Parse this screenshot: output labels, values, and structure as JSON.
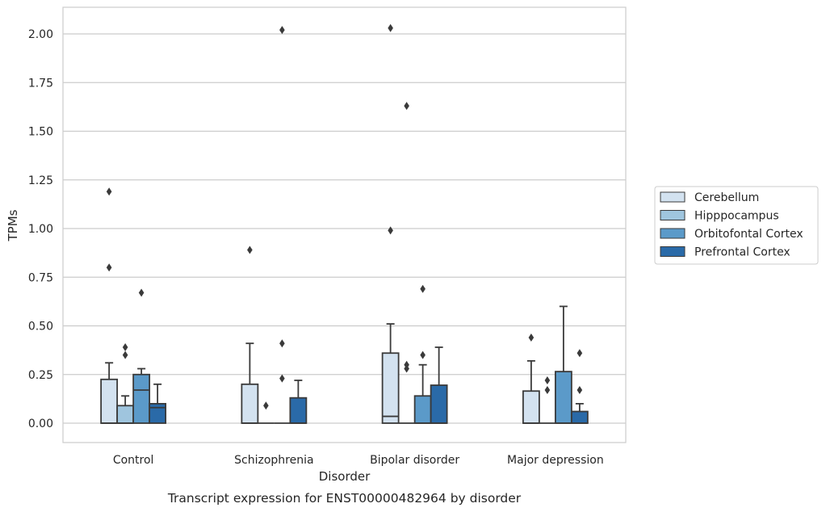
{
  "chart_data": {
    "type": "box",
    "xlabel": "Disorder",
    "ylabel": "TPMs",
    "caption": "Transcript expression for ENST00000482964 by disorder",
    "ylim": [
      -0.1,
      2.13
    ],
    "yticks": [
      0.0,
      0.25,
      0.5,
      0.75,
      1.0,
      1.25,
      1.5,
      1.75,
      2.0
    ],
    "ytick_labels": [
      "0.00",
      "0.25",
      "0.50",
      "0.75",
      "1.00",
      "1.25",
      "1.50",
      "1.75",
      "2.00"
    ],
    "grid": "horizontal",
    "legend_position": "right",
    "categories": [
      "Control",
      "Schizophrenia",
      "Bipolar disorder",
      "Major depression"
    ],
    "series": [
      {
        "name": "Cerebellum",
        "color": "#d3e2f0",
        "boxes": [
          {
            "whislo": 0.0,
            "q1": 0.0,
            "med": 0.0,
            "q3": 0.225,
            "whishi": 0.31,
            "fliers": [
              1.19,
              0.8
            ]
          },
          {
            "whislo": 0.0,
            "q1": 0.0,
            "med": 0.0,
            "q3": 0.2,
            "whishi": 0.41,
            "fliers": [
              0.89
            ]
          },
          {
            "whislo": 0.0,
            "q1": 0.0,
            "med": 0.035,
            "q3": 0.36,
            "whishi": 0.51,
            "fliers": [
              2.03,
              0.99
            ]
          },
          {
            "whislo": 0.0,
            "q1": 0.0,
            "med": 0.0,
            "q3": 0.165,
            "whishi": 0.32,
            "fliers": [
              0.44
            ]
          }
        ]
      },
      {
        "name": "Hipppocampus",
        "color": "#9fc5de",
        "boxes": [
          {
            "whislo": 0.0,
            "q1": 0.0,
            "med": 0.0,
            "q3": 0.09,
            "whishi": 0.14,
            "fliers": [
              0.39,
              0.35
            ]
          },
          {
            "whislo": 0.0,
            "q1": 0.0,
            "med": 0.0,
            "q3": 0.0,
            "whishi": 0.0,
            "fliers": [
              0.09
            ]
          },
          {
            "whislo": 0.0,
            "q1": 0.0,
            "med": 0.0,
            "q3": 0.0,
            "whishi": 0.0,
            "fliers": [
              1.63,
              0.3,
              0.28
            ]
          },
          {
            "whislo": 0.0,
            "q1": 0.0,
            "med": 0.0,
            "q3": 0.0,
            "whishi": 0.0,
            "fliers": [
              0.22,
              0.17
            ]
          }
        ]
      },
      {
        "name": "Orbitofontal Cortex",
        "color": "#5b9ac9",
        "boxes": [
          {
            "whislo": 0.0,
            "q1": 0.0,
            "med": 0.17,
            "q3": 0.25,
            "whishi": 0.28,
            "fliers": [
              0.67
            ]
          },
          {
            "whislo": 0.0,
            "q1": 0.0,
            "med": 0.0,
            "q3": 0.0,
            "whishi": 0.0,
            "fliers": [
              2.02,
              0.41,
              0.23
            ]
          },
          {
            "whislo": 0.0,
            "q1": 0.0,
            "med": 0.0,
            "q3": 0.14,
            "whishi": 0.3,
            "fliers": [
              0.69,
              0.35
            ]
          },
          {
            "whislo": 0.0,
            "q1": 0.0,
            "med": 0.0,
            "q3": 0.265,
            "whishi": 0.6,
            "fliers": []
          }
        ]
      },
      {
        "name": "Prefrontal Cortex",
        "color": "#2a6aa8",
        "boxes": [
          {
            "whislo": 0.0,
            "q1": 0.0,
            "med": 0.08,
            "q3": 0.1,
            "whishi": 0.2,
            "fliers": []
          },
          {
            "whislo": 0.0,
            "q1": 0.0,
            "med": 0.0,
            "q3": 0.13,
            "whishi": 0.22,
            "fliers": []
          },
          {
            "whislo": 0.0,
            "q1": 0.0,
            "med": 0.0,
            "q3": 0.195,
            "whishi": 0.39,
            "fliers": []
          },
          {
            "whislo": 0.0,
            "q1": 0.0,
            "med": 0.0,
            "q3": 0.06,
            "whishi": 0.1,
            "fliers": [
              0.36,
              0.17
            ]
          }
        ]
      }
    ]
  }
}
